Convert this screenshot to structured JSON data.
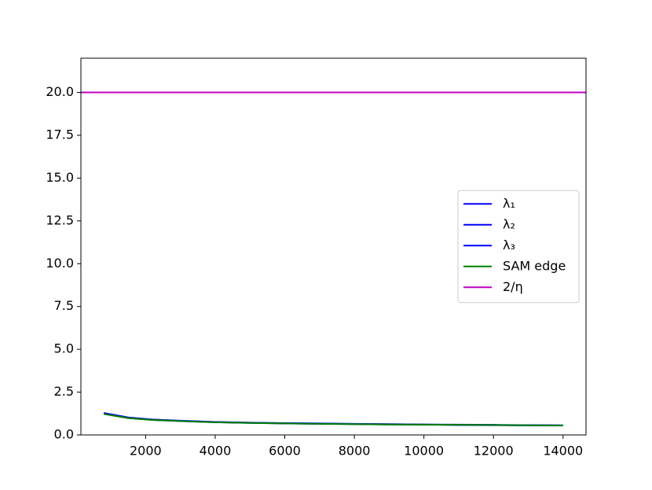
{
  "chart_data": {
    "type": "line",
    "x": [
      800,
      1500,
      2200,
      3000,
      4000,
      5000,
      6000,
      7000,
      8000,
      9000,
      10000,
      11000,
      12000,
      13000,
      14000
    ],
    "series": [
      {
        "name": "λ₁",
        "color": "#0000ff",
        "values": [
          1.28,
          1.02,
          0.9,
          0.83,
          0.76,
          0.72,
          0.69,
          0.67,
          0.65,
          0.63,
          0.61,
          0.6,
          0.59,
          0.57,
          0.56
        ]
      },
      {
        "name": "λ₂",
        "color": "#0000ff",
        "values": [
          1.26,
          1.0,
          0.89,
          0.82,
          0.75,
          0.71,
          0.68,
          0.66,
          0.64,
          0.62,
          0.6,
          0.59,
          0.58,
          0.56,
          0.55
        ]
      },
      {
        "name": "λ₃",
        "color": "#0000ff",
        "values": [
          1.24,
          0.99,
          0.88,
          0.81,
          0.74,
          0.7,
          0.67,
          0.65,
          0.63,
          0.61,
          0.6,
          0.58,
          0.57,
          0.56,
          0.55
        ]
      },
      {
        "name": "SAM edge",
        "color": "#008000",
        "values": [
          1.22,
          0.98,
          0.87,
          0.81,
          0.74,
          0.7,
          0.67,
          0.65,
          0.63,
          0.61,
          0.6,
          0.59,
          0.58,
          0.56,
          0.55
        ]
      }
    ],
    "hlines": [
      {
        "name": "2/η",
        "color": "#bf00bf",
        "value": 20
      }
    ],
    "xlim": [
      140,
      14660
    ],
    "ylim": [
      0,
      22
    ],
    "xticks": [
      2000,
      4000,
      6000,
      8000,
      10000,
      12000,
      14000
    ],
    "yticks": [
      {
        "value": 0,
        "label": "0.0"
      },
      {
        "value": 2.5,
        "label": "2.5"
      },
      {
        "value": 5,
        "label": "5.0"
      },
      {
        "value": 7.5,
        "label": "7.5"
      },
      {
        "value": 10,
        "label": "10.0"
      },
      {
        "value": 12.5,
        "label": "12.5"
      },
      {
        "value": 15,
        "label": "15.0"
      },
      {
        "value": 17.5,
        "label": "17.5"
      },
      {
        "value": 20,
        "label": "20.0"
      }
    ],
    "legend": "center right"
  }
}
